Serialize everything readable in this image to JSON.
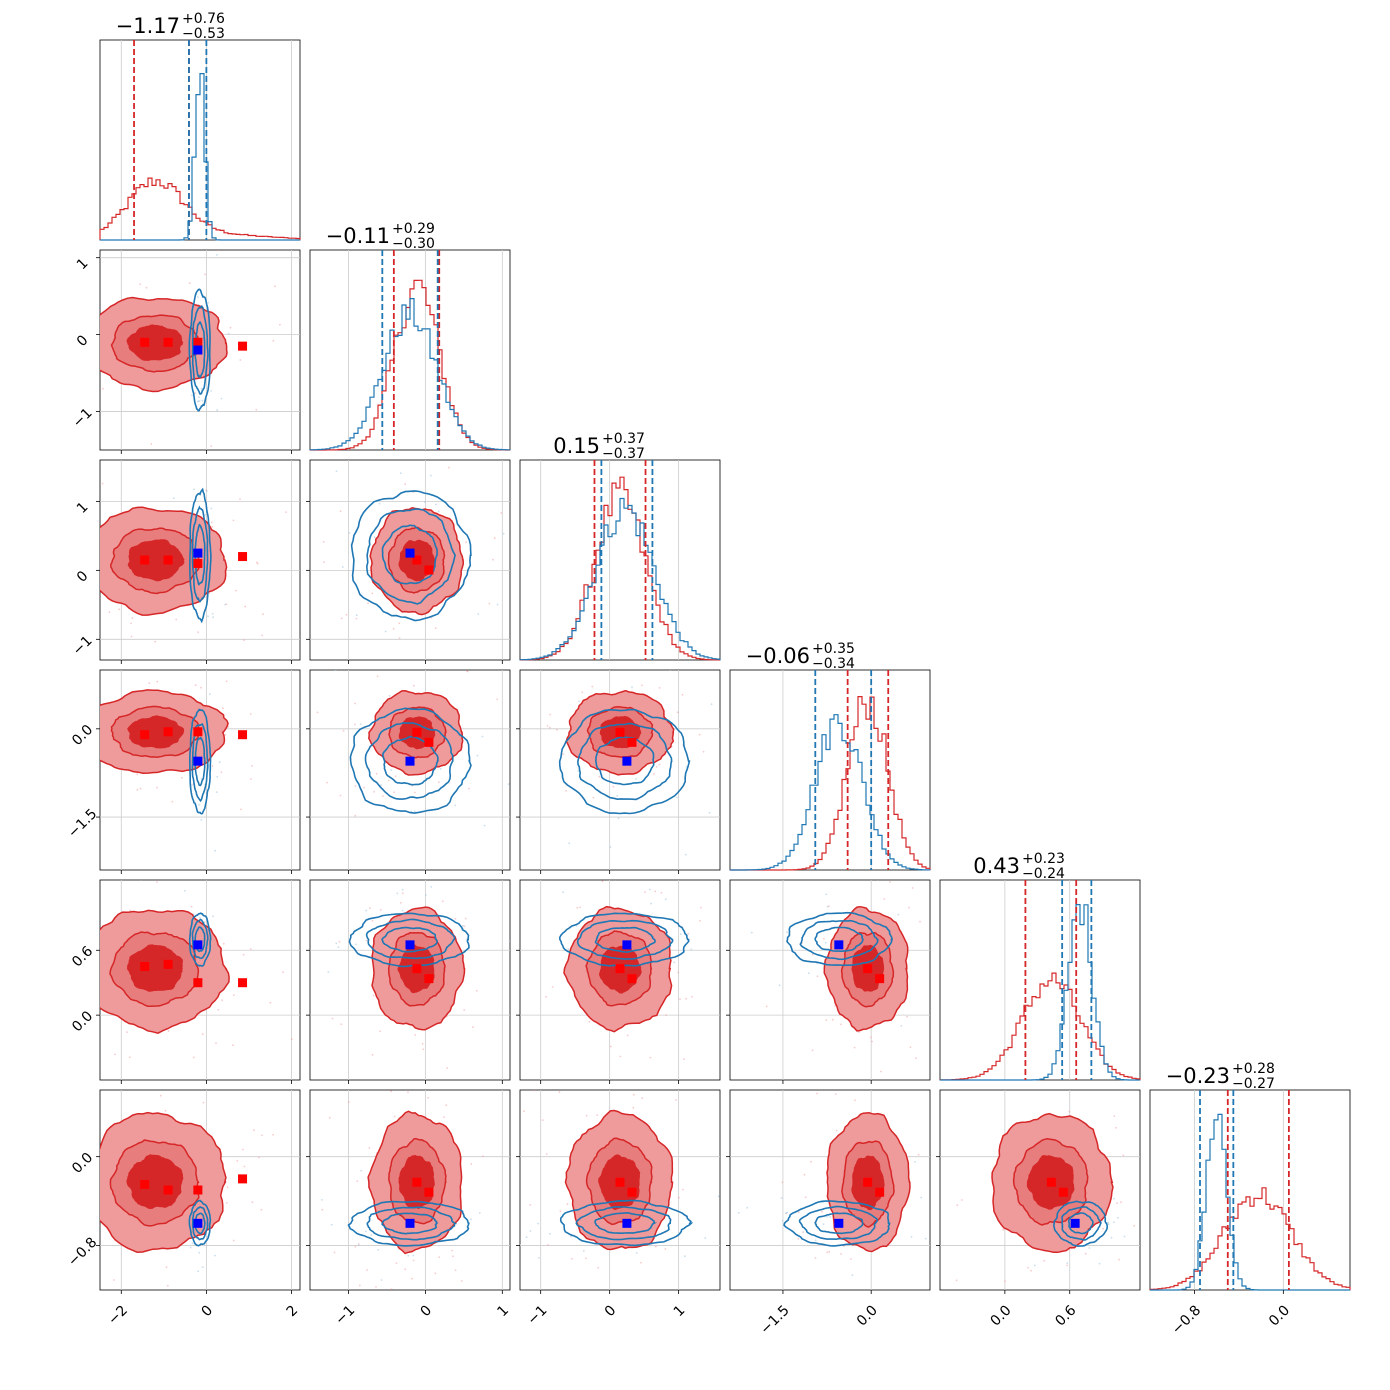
{
  "chart_data": {
    "type": "corner",
    "parameters": [
      {
        "title_main": "−1.17",
        "title_plus": "+0.76",
        "title_minus": "−0.53",
        "range": [
          -2.5,
          2.2
        ],
        "ticks": [
          {
            "value": -2,
            "label": "−2"
          },
          {
            "value": 0,
            "label": "0"
          },
          {
            "value": 2,
            "label": "2"
          }
        ],
        "red_hist": {
          "center": -1.2,
          "sigma": 0.65,
          "skew_tail": 0.6,
          "peak": 0.27
        },
        "blue_hist": {
          "center": -0.15,
          "sigma": 0.11,
          "peak": 0.9
        },
        "red_quantiles": [
          -1.7,
          -0.41
        ],
        "blue_quantiles": [
          -0.41,
          0.0
        ]
      },
      {
        "title_main": "−0.11",
        "title_plus": "+0.29",
        "title_minus": "−0.30",
        "range": [
          -1.5,
          1.1
        ],
        "ticks": [
          {
            "value": -1,
            "label": "−1"
          },
          {
            "value": 0,
            "label": "0"
          },
          {
            "value": 1,
            "label": "1"
          }
        ],
        "red_hist": {
          "center": -0.11,
          "sigma": 0.29,
          "peak": 0.82
        },
        "blue_hist": {
          "center": -0.2,
          "sigma": 0.35,
          "peak": 0.68
        },
        "red_quantiles": [
          -0.41,
          0.18
        ],
        "blue_quantiles": [
          -0.56,
          0.16
        ]
      },
      {
        "title_main": "0.15",
        "title_plus": "+0.37",
        "title_minus": "−0.37",
        "range": [
          -1.3,
          1.6
        ],
        "ticks": [
          {
            "value": -1,
            "label": "−1"
          },
          {
            "value": 0,
            "label": "0"
          },
          {
            "value": 1,
            "label": "1"
          }
        ],
        "red_hist": {
          "center": 0.15,
          "sigma": 0.37,
          "peak": 0.82
        },
        "blue_hist": {
          "center": 0.22,
          "sigma": 0.42,
          "peak": 0.76
        },
        "red_quantiles": [
          -0.22,
          0.52
        ],
        "blue_quantiles": [
          -0.12,
          0.62
        ]
      },
      {
        "title_main": "−0.06",
        "title_plus": "+0.35",
        "title_minus": "−0.34",
        "range": [
          -2.4,
          1.0
        ],
        "ticks": [
          {
            "value": -1.5,
            "label": "−1.5"
          },
          {
            "value": 0.0,
            "label": "0.0"
          }
        ],
        "red_hist": {
          "center": -0.06,
          "sigma": 0.34,
          "peak": 0.85
        },
        "blue_hist": {
          "center": -0.55,
          "sigma": 0.4,
          "peak": 0.75
        },
        "red_quantiles": [
          -0.4,
          0.29
        ],
        "blue_quantiles": [
          -0.95,
          0.0
        ]
      },
      {
        "title_main": "0.43",
        "title_plus": "+0.23",
        "title_minus": "−0.24",
        "range": [
          -0.6,
          1.25
        ],
        "ticks": [
          {
            "value": 0.0,
            "label": "0.0"
          },
          {
            "value": 0.6,
            "label": "0.6"
          }
        ],
        "red_hist": {
          "center": 0.43,
          "sigma": 0.27,
          "peak": 0.5
        },
        "blue_hist": {
          "center": 0.7,
          "sigma": 0.11,
          "peak": 0.88
        },
        "red_quantiles": [
          0.19,
          0.66
        ],
        "blue_quantiles": [
          0.53,
          0.8
        ]
      },
      {
        "title_main": "−0.23",
        "title_plus": "+0.28",
        "title_minus": "−0.27",
        "range": [
          -1.2,
          0.6
        ],
        "ticks": [
          {
            "value": -0.8,
            "label": "−0.8"
          },
          {
            "value": 0.0,
            "label": "0.0"
          }
        ],
        "red_hist": {
          "center": -0.23,
          "sigma": 0.3,
          "peak": 0.48
        },
        "blue_hist": {
          "center": -0.6,
          "sigma": 0.09,
          "peak": 0.9
        },
        "red_quantiles": [
          -0.5,
          0.05
        ],
        "blue_quantiles": [
          -0.75,
          -0.45
        ]
      }
    ],
    "grid": true,
    "series_colors": {
      "red": "#d62728",
      "red_light": "#ef9a9b",
      "red_fill": "#e87d7e",
      "blue": "#1f77b4"
    },
    "marker_colors": {
      "red_marker": "#ff0000",
      "blue_marker": "#0000ff"
    },
    "red_markers_x": [
      -1.45,
      -0.9,
      -0.2,
      0.85
    ],
    "blue_marker": [
      -0.2,
      -0.2,
      0.25,
      -0.55,
      0.65,
      -0.6
    ],
    "red_markers_y": [
      [
        -0.1,
        -0.1,
        -0.1,
        -0.15
      ],
      [
        0.15,
        0.15,
        0.1,
        0.2
      ],
      [
        -0.1,
        -0.05,
        -0.05,
        -0.1
      ],
      [
        0.45,
        0.47,
        0.3,
        0.3
      ],
      [
        -0.25,
        -0.3,
        -0.3,
        -0.2
      ]
    ]
  }
}
